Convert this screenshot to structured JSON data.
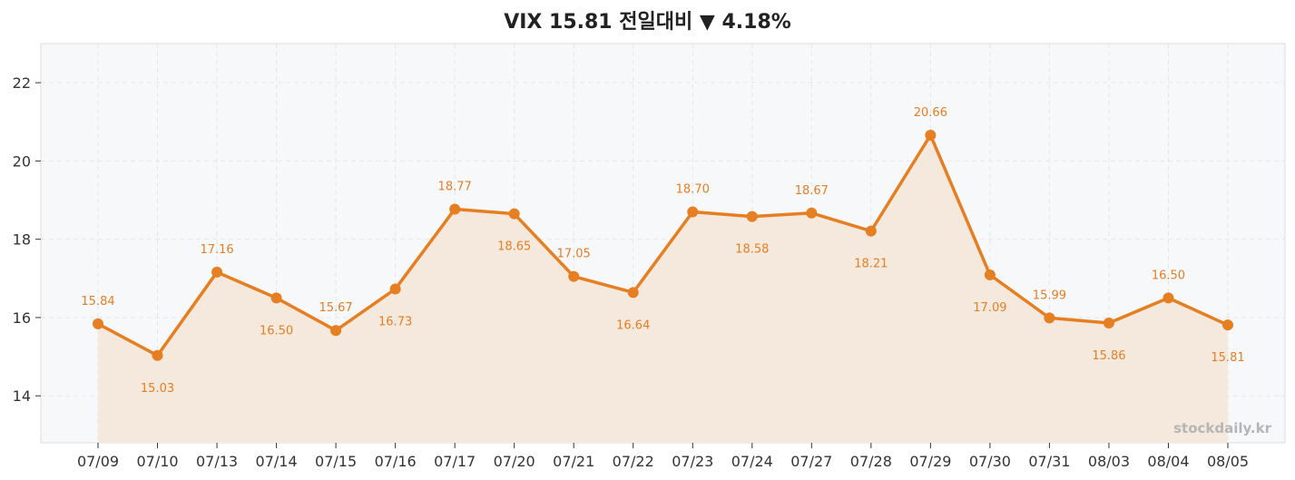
{
  "chart_data": {
    "type": "line",
    "title": "VIX  15.81  전일대비 ▼ 4.18%",
    "categories": [
      "07/09",
      "07/10",
      "07/13",
      "07/14",
      "07/15",
      "07/16",
      "07/17",
      "07/20",
      "07/21",
      "07/22",
      "07/23",
      "07/24",
      "07/27",
      "07/28",
      "07/29",
      "07/30",
      "07/31",
      "08/03",
      "08/04",
      "08/05"
    ],
    "series": [
      {
        "values": [
          15.84,
          15.03,
          17.16,
          16.5,
          15.67,
          16.73,
          18.77,
          18.65,
          17.05,
          16.64,
          18.7,
          18.58,
          18.67,
          18.21,
          20.66,
          17.09,
          15.99,
          15.86,
          16.5,
          15.81
        ],
        "labels": [
          "15.84",
          "15.03",
          "17.16",
          "16.50",
          "15.67",
          "16.73",
          "18.77",
          "18.65",
          "17.05",
          "16.64",
          "18.70",
          "18.58",
          "18.67",
          "18.21",
          "20.66",
          "17.09",
          "15.99",
          "15.86",
          "16.50",
          "15.81"
        ],
        "label_position": [
          "above",
          "below",
          "above",
          "below",
          "above",
          "below",
          "above",
          "below",
          "above",
          "below",
          "above",
          "below",
          "above",
          "below",
          "above",
          "below",
          "above",
          "below",
          "above",
          "below"
        ]
      }
    ],
    "y_ticks": [
      14,
      16,
      18,
      20,
      22
    ],
    "ylim": [
      12.8,
      23.0
    ],
    "grid": true,
    "colors": {
      "line": "#e67e22",
      "fill": "#f5e6d8",
      "plot_bg": "#f7f8fa",
      "grid": "#e4e6ea",
      "axis_text": "#333333",
      "watermark": "#b5b5b5"
    },
    "watermark": "stockdaily.kr"
  }
}
